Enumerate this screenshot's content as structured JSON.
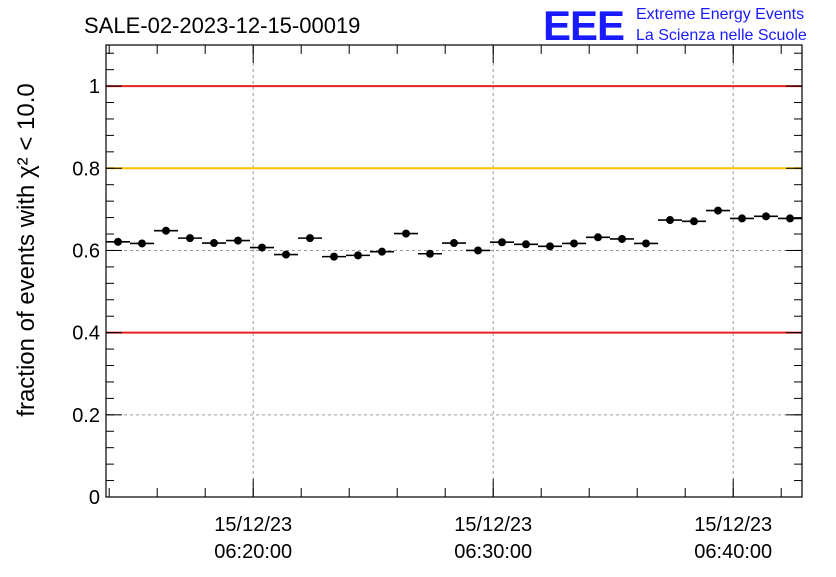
{
  "run_title": "SALE-02-2023-12-15-00019",
  "logo": {
    "text": "EEE",
    "line1": "Extreme Energy Events",
    "line2": "La Scienza nelle Scuole",
    "color": "#1a1aff"
  },
  "chart_data": {
    "type": "scatter",
    "title": "SALE-02-2023-12-15-00019",
    "ylabel": "fraction of events with χ² < 10.0",
    "xlabel": "",
    "xlim": [
      "06:13:52",
      "06:42:52"
    ],
    "ylim": [
      0,
      1.1
    ],
    "grid": true,
    "y_ticks": [
      0,
      0.2,
      0.4,
      0.6,
      0.8,
      1
    ],
    "y_tick_labels": [
      "0",
      "0.2",
      "0.4",
      "0.6",
      "0.8",
      "1"
    ],
    "x_ticks": [
      "06:20:00",
      "06:30:00",
      "06:40:00"
    ],
    "x_tick_dates": [
      "15/12/23",
      "15/12/23",
      "15/12/23"
    ],
    "reference_lines": [
      {
        "y": 1.0,
        "color": "#e8221e"
      },
      {
        "y": 0.8,
        "color": "#ffc000"
      },
      {
        "y": 0.4,
        "color": "#e8221e"
      }
    ],
    "bin_width_minutes": 1,
    "series": [
      {
        "x": [
          "06:14:22",
          "06:15:22",
          "06:16:22",
          "06:17:22",
          "06:18:22",
          "06:19:22",
          "06:20:22",
          "06:21:22",
          "06:22:22",
          "06:23:22",
          "06:24:22",
          "06:25:22",
          "06:26:22",
          "06:27:22",
          "06:28:22",
          "06:29:22",
          "06:30:22",
          "06:31:22",
          "06:32:22",
          "06:33:22",
          "06:34:22",
          "06:35:22",
          "06:36:22",
          "06:37:22",
          "06:38:22",
          "06:39:22",
          "06:40:22",
          "06:41:22",
          "06:42:22"
        ],
        "values": [
          0.621,
          0.617,
          0.648,
          0.63,
          0.618,
          0.624,
          0.607,
          0.59,
          0.63,
          0.585,
          0.588,
          0.597,
          0.641,
          0.592,
          0.618,
          0.6,
          0.62,
          0.615,
          0.61,
          0.617,
          0.632,
          0.628,
          0.617,
          0.674,
          0.671,
          0.697,
          0.678,
          0.683,
          0.678
        ],
        "errors": [
          0.009,
          0.009,
          0.009,
          0.009,
          0.009,
          0.009,
          0.009,
          0.009,
          0.009,
          0.009,
          0.009,
          0.009,
          0.009,
          0.009,
          0.009,
          0.009,
          0.009,
          0.009,
          0.009,
          0.009,
          0.009,
          0.009,
          0.009,
          0.009,
          0.009,
          0.009,
          0.009,
          0.009,
          0.009
        ]
      }
    ]
  }
}
